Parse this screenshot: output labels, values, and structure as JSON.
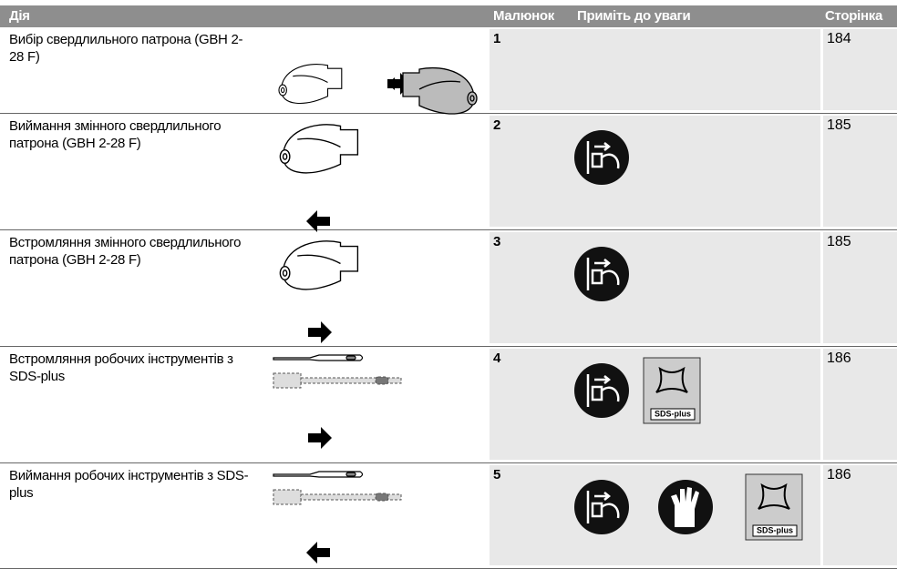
{
  "header": {
    "columns": [
      "Дія",
      "Малюнок",
      "Приміть до уваги",
      "Сторінка"
    ]
  },
  "rows": [
    {
      "action": "Вибір свердлильного патрона (GBH 2-28 F)",
      "figure": "1",
      "page": "184"
    },
    {
      "action": "Виймання змінного свердлильного патрона (GBH 2-28 F)",
      "figure": "2",
      "page": "185"
    },
    {
      "action": "Встромляння змінного свердлильного патрона (GBH 2-28 F)",
      "figure": "3",
      "page": "185"
    },
    {
      "action": "Встромляння робочих інструментів з SDS-plus",
      "figure": "4",
      "page": "186",
      "badge": "SDS-plus"
    },
    {
      "action": "Виймання робочих інструментів з SDS-plus",
      "figure": "5",
      "page": "186",
      "badge": "SDS-plus"
    }
  ]
}
